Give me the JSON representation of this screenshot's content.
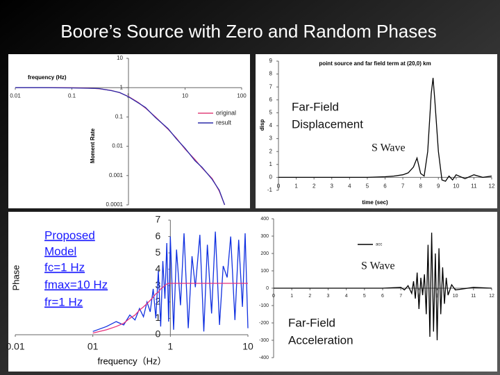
{
  "title": "Boore’s Source with Zero and Random Phases",
  "chart_data": [
    {
      "type": "line",
      "x_label": "frequency (Hz)",
      "y_label": "Moment Rate",
      "log_x": true,
      "log_y": true,
      "xlim": [
        0.01,
        100
      ],
      "ylim": [
        0.0001,
        10
      ],
      "xticks": [
        0.01,
        0.1,
        1,
        10,
        100
      ],
      "yticks": [
        10,
        1,
        0.1,
        0.01,
        0.001,
        0.0001
      ],
      "x_axis_at": 1,
      "y_axis_at": 1,
      "legend": "right",
      "x": [
        0.01,
        0.03,
        0.1,
        0.2,
        0.3,
        0.5,
        0.7,
        1,
        1.5,
        2,
        3,
        5,
        7,
        10,
        15,
        20,
        30,
        40,
        50
      ],
      "series": [
        {
          "name": "original",
          "color": "#e0407a",
          "values": [
            1,
            1,
            0.99,
            0.96,
            0.92,
            0.8,
            0.67,
            0.5,
            0.31,
            0.2,
            0.1,
            0.038,
            0.019,
            0.008,
            0.0035,
            0.0018,
            0.0008,
            0.0003,
            0.0001
          ]
        },
        {
          "name": "result",
          "color": "#2a2aa8",
          "values": [
            1,
            1,
            0.98,
            0.95,
            0.93,
            0.79,
            0.68,
            0.49,
            0.3,
            0.21,
            0.095,
            0.04,
            0.018,
            0.0085,
            0.0032,
            0.0019,
            0.00075,
            0.00032,
            0.0001
          ]
        }
      ]
    },
    {
      "type": "line",
      "title": "point source and far field term at (20,0) km",
      "x_label": "time (sec)",
      "y_label": "disp",
      "xlim": [
        0,
        12
      ],
      "ylim": [
        -1,
        9
      ],
      "xticks": [
        0,
        1,
        2,
        3,
        4,
        5,
        6,
        7,
        8,
        9,
        10,
        11,
        12
      ],
      "yticks": [
        -1,
        0,
        1,
        2,
        3,
        4,
        5,
        6,
        7,
        8,
        9
      ],
      "x_axis_at": 0,
      "annotations": [
        "Far-Field",
        "Displacement",
        "S Wave"
      ],
      "x": [
        0,
        1,
        2,
        3,
        4,
        5,
        6,
        6.5,
        7,
        7.3,
        7.6,
        7.8,
        8,
        8.2,
        8.4,
        8.6,
        8.7,
        8.8,
        9,
        9.2,
        9.4,
        9.6,
        9.8,
        10,
        10.5,
        11,
        11.5,
        12
      ],
      "series": [
        {
          "color": "#000000",
          "values": [
            0,
            0,
            0,
            0,
            0,
            0,
            0.05,
            0.1,
            0.2,
            0.35,
            0.8,
            1.5,
            0.3,
            0.1,
            2,
            6.5,
            7.7,
            6,
            2,
            -0.2,
            -0.3,
            0.1,
            -0.2,
            0.2,
            -0.1,
            0.2,
            0,
            0.1
          ]
        }
      ]
    },
    {
      "type": "line",
      "x_label": "frequency（Hz）",
      "y_label": "Phase",
      "log_x": true,
      "xlim": [
        0.01,
        10
      ],
      "ylim": [
        0,
        7
      ],
      "xticks": [
        0.01,
        {
          "value": 0.1,
          "label": "01"
        },
        1,
        10
      ],
      "yticks": [
        0,
        1,
        2,
        3,
        4,
        5,
        6,
        7
      ],
      "y_axis_at": 1,
      "annotations": [
        "Proposed",
        "Model",
        "fc=1 Hz",
        "fmax=10 Hz",
        "fr=1 Hz"
      ],
      "x": [
        0.1,
        0.15,
        0.2,
        0.25,
        0.3,
        0.35,
        0.4,
        0.45,
        0.5,
        0.55,
        0.6,
        0.65,
        0.7,
        0.75,
        0.8,
        0.85,
        0.9,
        0.95,
        1,
        1.1,
        1.2,
        1.35,
        1.5,
        1.7,
        1.9,
        2.1,
        2.4,
        2.7,
        3,
        3.4,
        3.8,
        4.3,
        4.8,
        5.4,
        6,
        6.8,
        7.6,
        8.5,
        9.2,
        10
      ],
      "series": [
        {
          "color": "#1030e0",
          "values": [
            0.2,
            0.5,
            0.8,
            0.6,
            1.2,
            0.9,
            1.6,
            1.1,
            2.0,
            1.4,
            2.8,
            1.0,
            3.9,
            0.5,
            4.5,
            2.2,
            5.6,
            0.8,
            6.0,
            0.3,
            5.2,
            1.8,
            6.2,
            0.4,
            4.8,
            2.9,
            6.1,
            0.2,
            5.5,
            1.3,
            6.3,
            0.6,
            4.2,
            3.5,
            6.0,
            0.9,
            5.8,
            1.7,
            6.2,
            0.4
          ]
        },
        {
          "color": "#e8307a",
          "values": [
            0.1,
            0.3,
            0.5,
            0.7,
            1.0,
            1.2,
            1.5,
            1.7,
            1.9,
            2.1,
            2.3,
            2.5,
            2.6,
            2.8,
            2.9,
            3.0,
            3.1,
            3.14,
            3.14,
            3.14,
            3.14,
            3.14,
            3.14,
            3.14,
            3.14,
            3.14,
            3.14,
            3.14,
            3.14,
            3.14,
            3.14,
            3.14,
            3.14,
            3.14,
            3.14,
            3.14,
            3.14,
            3.14,
            3.14,
            3.14
          ]
        }
      ]
    },
    {
      "type": "line",
      "xlim": [
        0,
        12
      ],
      "ylim": [
        -400,
        400
      ],
      "xticks": [
        0,
        1,
        2,
        3,
        4,
        5,
        6,
        7,
        8,
        9,
        10,
        11,
        12
      ],
      "yticks": [
        -400,
        -300,
        -200,
        -100,
        0,
        100,
        200,
        300,
        400
      ],
      "x_axis_at": 0,
      "legend": "top",
      "annotations": [
        "S Wave",
        "Far-Field",
        "Acceleration"
      ],
      "x": [
        0,
        1,
        2,
        3,
        4,
        5,
        6,
        7,
        7.2,
        7.4,
        7.6,
        7.7,
        7.8,
        7.9,
        8,
        8.1,
        8.2,
        8.3,
        8.4,
        8.5,
        8.6,
        8.7,
        8.8,
        8.9,
        9,
        9.1,
        9.2,
        9.3,
        9.4,
        9.5,
        9.6,
        9.8,
        10,
        11,
        12
      ],
      "series": [
        {
          "name": "acc",
          "color": "#000000",
          "values": [
            0,
            0,
            0,
            0,
            0,
            0,
            0,
            5,
            -10,
            15,
            -30,
            40,
            -60,
            90,
            -120,
            60,
            -40,
            80,
            -150,
            250,
            -280,
            320,
            -250,
            200,
            -300,
            230,
            -150,
            120,
            -90,
            60,
            -40,
            20,
            -10,
            5,
            0
          ]
        }
      ]
    }
  ]
}
